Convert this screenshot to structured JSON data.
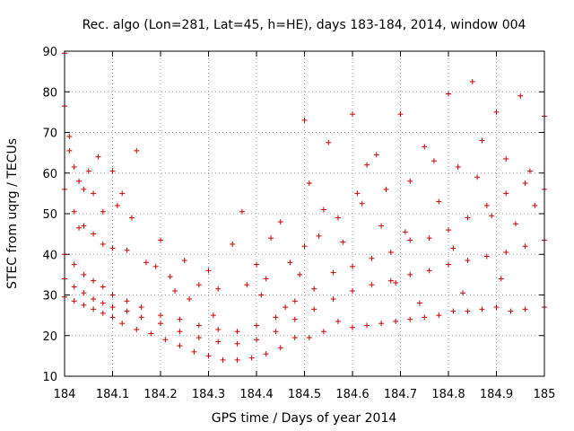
{
  "chart_data": {
    "type": "scatter",
    "title": "Rec. algo (Lon=281, Lat=45, h=HE), days 183-184, 2014, window 004",
    "xlabel": "GPS time / Days of year 2014",
    "ylabel": "STEC from uqrg / TECUs",
    "xlim": [
      184,
      185
    ],
    "ylim": [
      10,
      90
    ],
    "xticks": [
      184,
      184.1,
      184.2,
      184.3,
      184.4,
      184.5,
      184.6,
      184.7,
      184.8,
      184.9,
      185
    ],
    "xtick_labels": [
      "184",
      "184.1",
      "184.2",
      "184.3",
      "184.4",
      "184.5",
      "184.6",
      "184.7",
      "184.8",
      "184.9",
      "185"
    ],
    "yticks": [
      10,
      20,
      30,
      40,
      50,
      60,
      70,
      80,
      90
    ],
    "ytick_labels": [
      "10",
      "20",
      "30",
      "40",
      "50",
      "60",
      "70",
      "80",
      "90"
    ],
    "grid": true,
    "marker": "+",
    "color": "#cc0000",
    "series": [
      {
        "name": "upper track",
        "x": [
          184.0,
          184.0,
          184.01,
          184.01,
          184.02,
          184.03,
          184.04,
          184.05,
          184.06,
          184.08,
          184.1,
          184.12,
          184.15,
          184.2,
          184.25,
          184.3,
          184.35,
          184.4,
          184.45,
          184.5,
          184.55,
          184.6,
          184.65,
          184.7,
          184.75,
          184.8,
          184.85,
          184.9,
          184.95,
          185.0
        ],
        "y": [
          89.5,
          76.5,
          69,
          65.5,
          61.5,
          58,
          56,
          60.5,
          55,
          50.5,
          60.5,
          55,
          65.5,
          43.5,
          38.5,
          36,
          42.5,
          37.5,
          48,
          73,
          67.5,
          74.5,
          64.5,
          74.5,
          66.5,
          79.5,
          82.5,
          75,
          79,
          74
        ]
      },
      {
        "name": "high band",
        "x": [
          184.0,
          184.02,
          184.04,
          184.06,
          184.08,
          184.1,
          184.13,
          184.17,
          184.22,
          184.28,
          184.32,
          184.38,
          184.42,
          184.47,
          184.5,
          184.53,
          184.57,
          184.62,
          184.67,
          184.72,
          184.77,
          184.82,
          184.87,
          184.92,
          184.97
        ],
        "y": [
          56,
          50.5,
          47,
          45,
          42.5,
          41.5,
          41,
          38,
          34.5,
          32.5,
          31.5,
          32.5,
          34,
          38,
          42,
          44.5,
          49,
          52.5,
          56,
          58,
          63,
          61.5,
          68,
          63.5,
          60.5
        ]
      },
      {
        "name": "middle band",
        "x": [
          184.0,
          184.02,
          184.04,
          184.06,
          184.08,
          184.1,
          184.13,
          184.16,
          184.2,
          184.24,
          184.28,
          184.32,
          184.36,
          184.4,
          184.44,
          184.48,
          184.52,
          184.56,
          184.6,
          184.64,
          184.68,
          184.72,
          184.76,
          184.8,
          184.84,
          184.88,
          184.92,
          184.96,
          185.0
        ],
        "y": [
          40,
          37.5,
          35,
          33.5,
          32,
          30,
          28.5,
          27,
          25,
          24,
          22.5,
          21.5,
          21,
          22.5,
          24.5,
          28.5,
          31.5,
          35.5,
          37,
          39,
          40.5,
          43.5,
          44,
          46,
          49,
          52,
          55,
          57.5,
          56
        ]
      },
      {
        "name": "lower band",
        "x": [
          184.0,
          184.02,
          184.04,
          184.06,
          184.08,
          184.1,
          184.13,
          184.16,
          184.2,
          184.24,
          184.28,
          184.32,
          184.36,
          184.4,
          184.44,
          184.48,
          184.52,
          184.56,
          184.6,
          184.64,
          184.68,
          184.72,
          184.76,
          184.8,
          184.84,
          184.88,
          184.92,
          184.96,
          185.0
        ],
        "y": [
          34,
          32,
          30.5,
          29,
          28,
          27,
          26,
          24.5,
          23,
          21,
          19.5,
          18.5,
          18,
          19,
          21,
          24,
          26.5,
          29,
          31,
          32.5,
          33.5,
          35,
          36,
          37.5,
          38.5,
          39.5,
          40.5,
          42,
          43.5
        ]
      },
      {
        "name": "bottom envelope",
        "x": [
          184.0,
          184.02,
          184.04,
          184.06,
          184.08,
          184.1,
          184.12,
          184.15,
          184.18,
          184.21,
          184.24,
          184.27,
          184.3,
          184.33,
          184.36,
          184.39,
          184.42,
          184.45,
          184.48,
          184.51,
          184.54,
          184.57,
          184.6,
          184.63,
          184.66,
          184.69,
          184.72,
          184.75,
          184.78,
          184.81,
          184.84,
          184.87,
          184.9,
          184.93,
          184.96,
          185.0
        ],
        "y": [
          29.5,
          28.5,
          27.5,
          26.5,
          25.5,
          24.5,
          23,
          21.5,
          20.5,
          19,
          17.5,
          16,
          15,
          14,
          14,
          14.5,
          15.5,
          17,
          19.5,
          19.5,
          21,
          23.5,
          22,
          22.5,
          23,
          23.5,
          24,
          24.5,
          25,
          26,
          26,
          26.5,
          27,
          26,
          26.5,
          27
        ]
      },
      {
        "name": "scattered extras",
        "x": [
          184.03,
          184.07,
          184.11,
          184.14,
          184.19,
          184.23,
          184.26,
          184.31,
          184.37,
          184.41,
          184.43,
          184.46,
          184.49,
          184.51,
          184.54,
          184.58,
          184.61,
          184.63,
          184.66,
          184.69,
          184.71,
          184.74,
          184.78,
          184.81,
          184.83,
          184.86,
          184.89,
          184.91,
          184.94,
          184.98
        ],
        "y": [
          46.5,
          64,
          52,
          49,
          37,
          31,
          29,
          25,
          50.5,
          30,
          44,
          27,
          35,
          57.5,
          51,
          43,
          55,
          62,
          47,
          33,
          45.5,
          28,
          53,
          41.5,
          30.5,
          59,
          49.5,
          34,
          47.5,
          52
        ]
      }
    ]
  }
}
